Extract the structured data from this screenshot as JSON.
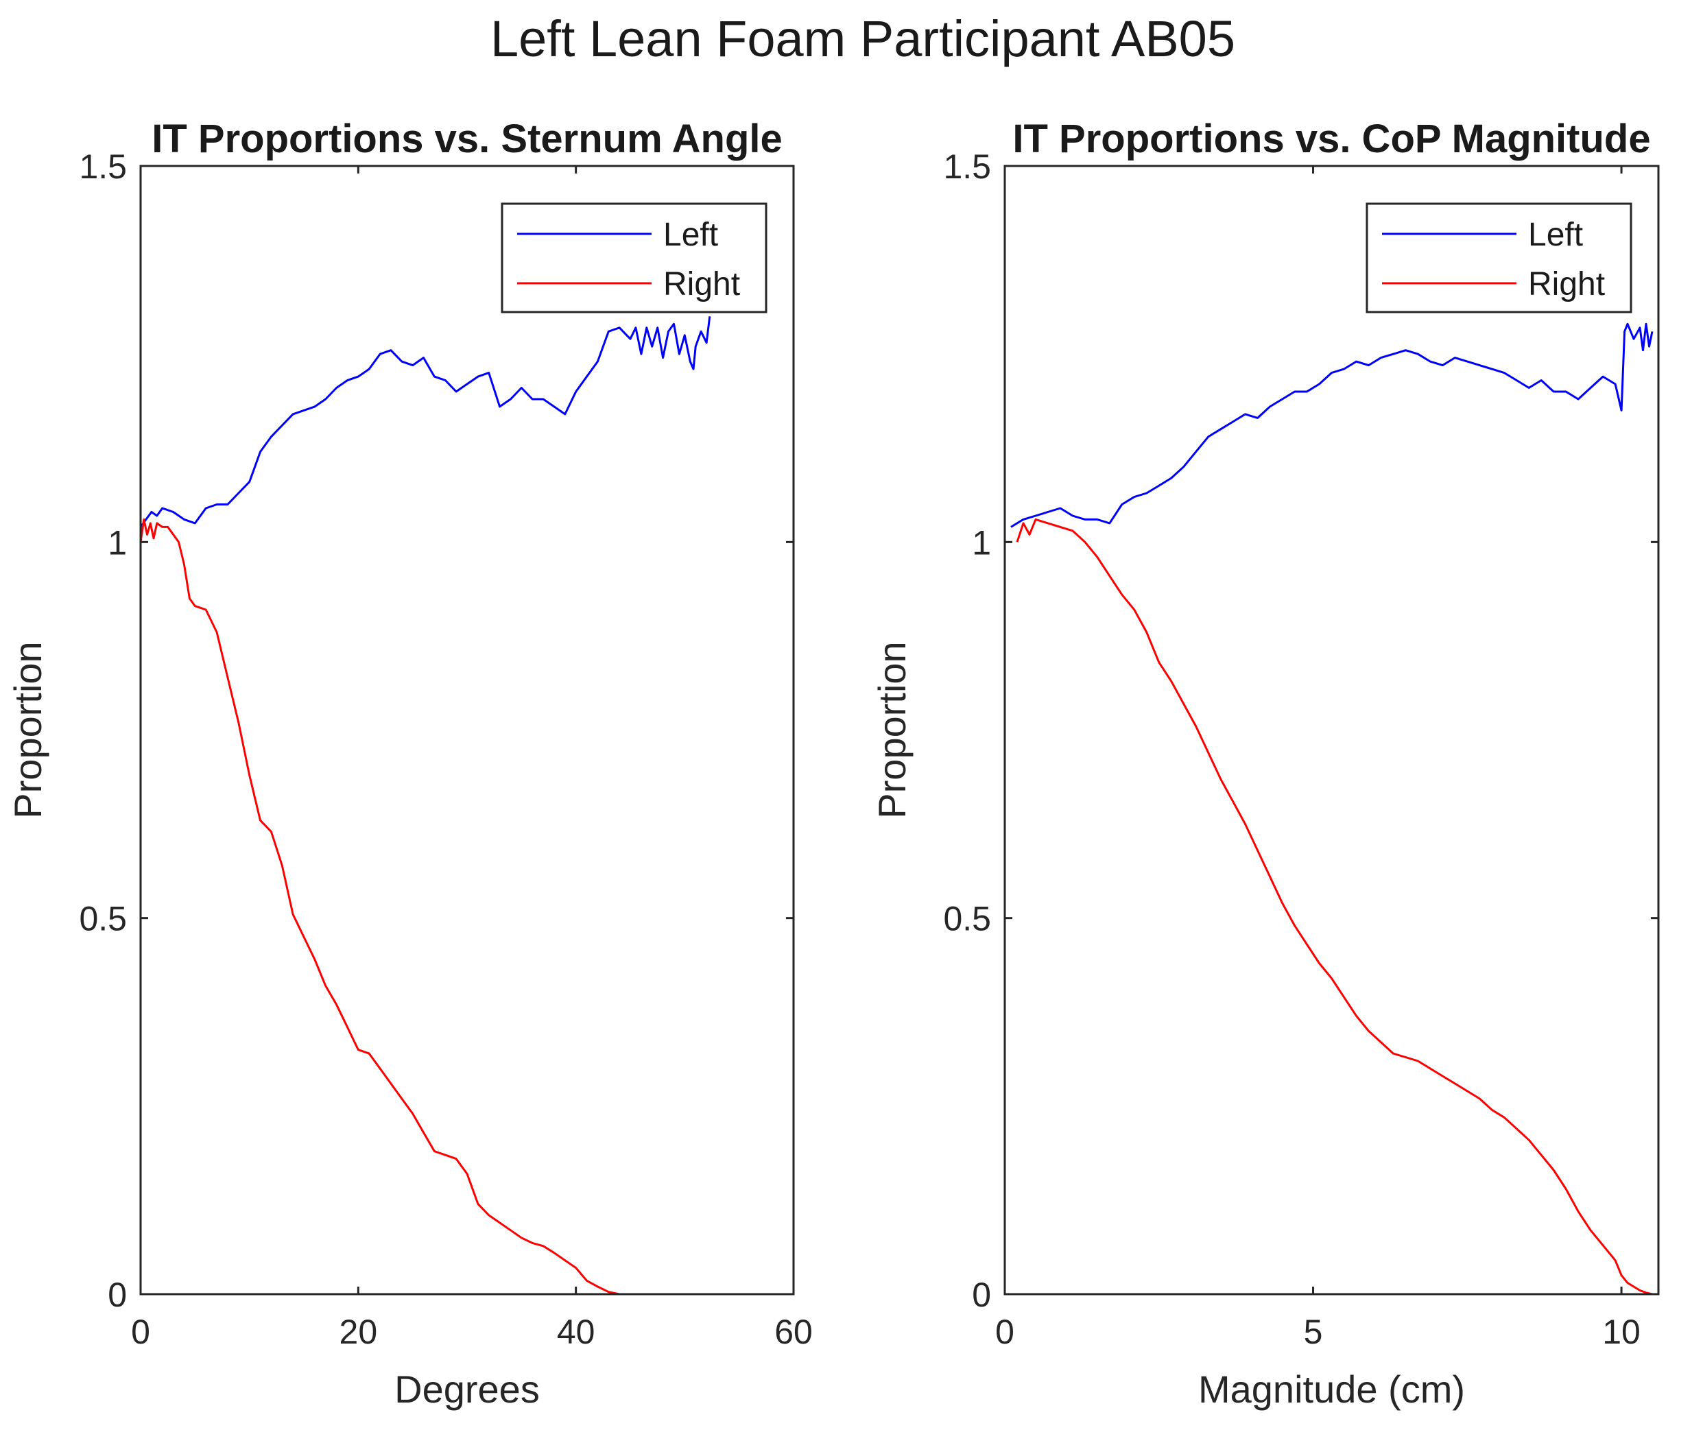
{
  "figure_title": "Left Lean Foam Participant AB05",
  "chart_data": [
    {
      "type": "line",
      "title": "IT Proportions vs. Sternum Angle",
      "xlabel": "Degrees",
      "ylabel": "Proportion",
      "xlim": [
        0,
        60
      ],
      "ylim": [
        0,
        1.5
      ],
      "xticks": [
        0,
        20,
        40,
        60
      ],
      "xtick_labels": [
        "0",
        "20",
        "40",
        "60"
      ],
      "yticks": [
        0,
        0.5,
        1,
        1.5
      ],
      "ytick_labels": [
        "0",
        "0.5",
        "1",
        "1.5"
      ],
      "grid": false,
      "legend_position": "top-right",
      "series": [
        {
          "name": "Left",
          "color": "#0000ff",
          "x": [
            0,
            0.5,
            1,
            1.5,
            2,
            3,
            4,
            5,
            6,
            7,
            8,
            9,
            10,
            11,
            12,
            13,
            14,
            15,
            16,
            17,
            18,
            19,
            20,
            21,
            22,
            23,
            24,
            25,
            26,
            27,
            28,
            29,
            30,
            31,
            32,
            33,
            34,
            35,
            36,
            37,
            38,
            39,
            40,
            41,
            42,
            43,
            44,
            45,
            45.5,
            46,
            46.5,
            47,
            47.5,
            48,
            48.5,
            49,
            49.5,
            50,
            50.5,
            50.8,
            51,
            51.5,
            52,
            52.3
          ],
          "y": [
            1.02,
            1.03,
            1.04,
            1.035,
            1.045,
            1.04,
            1.03,
            1.025,
            1.045,
            1.05,
            1.05,
            1.065,
            1.08,
            1.12,
            1.14,
            1.155,
            1.17,
            1.175,
            1.18,
            1.19,
            1.205,
            1.215,
            1.22,
            1.23,
            1.25,
            1.255,
            1.24,
            1.235,
            1.245,
            1.22,
            1.215,
            1.2,
            1.21,
            1.22,
            1.225,
            1.18,
            1.19,
            1.205,
            1.19,
            1.19,
            1.18,
            1.17,
            1.2,
            1.22,
            1.24,
            1.28,
            1.285,
            1.27,
            1.285,
            1.25,
            1.285,
            1.26,
            1.285,
            1.245,
            1.28,
            1.29,
            1.25,
            1.275,
            1.24,
            1.23,
            1.26,
            1.28,
            1.265,
            1.3
          ]
        },
        {
          "name": "Right",
          "color": "#ff0000",
          "x": [
            0,
            0.3,
            0.6,
            0.9,
            1.2,
            1.5,
            2,
            2.5,
            3,
            3.5,
            4,
            4.5,
            5,
            6,
            7,
            8,
            9,
            10,
            11,
            12,
            13,
            14,
            15,
            16,
            17,
            18,
            19,
            20,
            21,
            22,
            23,
            24,
            25,
            26,
            27,
            28,
            29,
            30,
            31,
            32,
            33,
            34,
            35,
            36,
            37,
            38,
            39,
            40,
            41,
            42,
            43,
            44,
            45,
            46,
            47,
            48,
            49,
            50,
            51,
            52
          ],
          "y": [
            1.0,
            1.03,
            1.01,
            1.025,
            1.005,
            1.025,
            1.02,
            1.02,
            1.01,
            1.0,
            0.97,
            0.925,
            0.915,
            0.91,
            0.88,
            0.82,
            0.76,
            0.69,
            0.63,
            0.615,
            0.57,
            0.505,
            0.475,
            0.445,
            0.41,
            0.385,
            0.355,
            0.325,
            0.32,
            0.3,
            0.28,
            0.26,
            0.24,
            0.215,
            0.19,
            0.185,
            0.18,
            0.16,
            0.12,
            0.105,
            0.095,
            0.085,
            0.075,
            0.068,
            0.064,
            0.055,
            0.045,
            0.035,
            0.018,
            0.01,
            0.003,
            0.0,
            0.0,
            0.0,
            0.0,
            0.0,
            0.0,
            0.0,
            0.0,
            0.0
          ]
        }
      ]
    },
    {
      "type": "line",
      "title": "IT Proportions vs. CoP Magnitude",
      "xlabel": "Magnitude (cm)",
      "ylabel": "Proportion",
      "xlim": [
        0,
        10.6
      ],
      "ylim": [
        0,
        1.5
      ],
      "xticks": [
        0,
        5,
        10
      ],
      "xtick_labels": [
        "0",
        "5",
        "10"
      ],
      "yticks": [
        0,
        0.5,
        1,
        1.5
      ],
      "ytick_labels": [
        "0",
        "0.5",
        "1",
        "1.5"
      ],
      "grid": false,
      "legend_position": "top-right",
      "series": [
        {
          "name": "Left",
          "color": "#0000ff",
          "x": [
            0.1,
            0.3,
            0.5,
            0.7,
            0.9,
            1.1,
            1.3,
            1.5,
            1.7,
            1.9,
            2.1,
            2.3,
            2.5,
            2.7,
            2.9,
            3.1,
            3.3,
            3.5,
            3.7,
            3.9,
            4.1,
            4.3,
            4.5,
            4.7,
            4.9,
            5.1,
            5.3,
            5.5,
            5.7,
            5.9,
            6.1,
            6.3,
            6.5,
            6.7,
            6.9,
            7.1,
            7.3,
            7.5,
            7.7,
            7.9,
            8.1,
            8.3,
            8.5,
            8.7,
            8.9,
            9.1,
            9.3,
            9.5,
            9.7,
            9.9,
            10.0,
            10.05,
            10.1,
            10.2,
            10.3,
            10.35,
            10.4,
            10.45,
            10.5
          ],
          "y": [
            1.02,
            1.03,
            1.035,
            1.04,
            1.045,
            1.035,
            1.03,
            1.03,
            1.025,
            1.05,
            1.06,
            1.065,
            1.075,
            1.085,
            1.1,
            1.12,
            1.14,
            1.15,
            1.16,
            1.17,
            1.165,
            1.18,
            1.19,
            1.2,
            1.2,
            1.21,
            1.225,
            1.23,
            1.24,
            1.235,
            1.245,
            1.25,
            1.255,
            1.25,
            1.24,
            1.235,
            1.245,
            1.24,
            1.235,
            1.23,
            1.225,
            1.215,
            1.205,
            1.215,
            1.2,
            1.2,
            1.19,
            1.205,
            1.22,
            1.21,
            1.175,
            1.28,
            1.29,
            1.27,
            1.285,
            1.255,
            1.29,
            1.26,
            1.28
          ]
        },
        {
          "name": "Right",
          "color": "#ff0000",
          "x": [
            0.2,
            0.3,
            0.4,
            0.5,
            0.7,
            0.9,
            1.1,
            1.3,
            1.5,
            1.7,
            1.9,
            2.1,
            2.3,
            2.5,
            2.7,
            2.9,
            3.1,
            3.3,
            3.5,
            3.7,
            3.9,
            4.1,
            4.3,
            4.5,
            4.7,
            4.9,
            5.1,
            5.3,
            5.5,
            5.7,
            5.9,
            6.1,
            6.3,
            6.5,
            6.7,
            6.9,
            7.1,
            7.3,
            7.5,
            7.7,
            7.9,
            8.1,
            8.3,
            8.5,
            8.7,
            8.9,
            9.1,
            9.3,
            9.5,
            9.7,
            9.9,
            10.0,
            10.1,
            10.2,
            10.3,
            10.4,
            10.5
          ],
          "y": [
            1.0,
            1.025,
            1.01,
            1.03,
            1.025,
            1.02,
            1.015,
            1.0,
            0.98,
            0.955,
            0.93,
            0.91,
            0.88,
            0.84,
            0.815,
            0.785,
            0.755,
            0.72,
            0.685,
            0.655,
            0.625,
            0.59,
            0.555,
            0.52,
            0.49,
            0.465,
            0.44,
            0.42,
            0.395,
            0.37,
            0.35,
            0.335,
            0.32,
            0.315,
            0.31,
            0.3,
            0.29,
            0.28,
            0.27,
            0.26,
            0.245,
            0.235,
            0.22,
            0.205,
            0.185,
            0.165,
            0.14,
            0.11,
            0.085,
            0.065,
            0.045,
            0.025,
            0.015,
            0.01,
            0.005,
            0.002,
            0.0
          ]
        }
      ]
    }
  ]
}
